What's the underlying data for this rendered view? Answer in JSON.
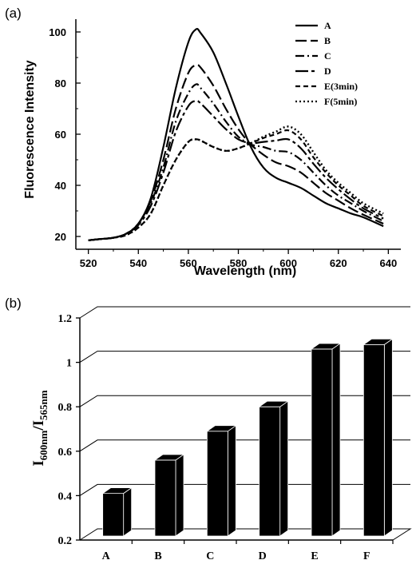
{
  "chart_data": [
    {
      "panel_label": "(a)",
      "type": "line",
      "title": "",
      "xlabel": "Wavelength (nm)",
      "ylabel": "Fluorescence Intensity",
      "xlim": [
        515,
        645
      ],
      "ylim": [
        15,
        105
      ],
      "xticks": [
        "520",
        "540",
        "560",
        "580",
        "600",
        "620",
        "640"
      ],
      "yticks": [
        "20",
        "40",
        "60",
        "80",
        "100"
      ],
      "x": [
        520,
        525,
        530,
        535,
        540,
        545,
        550,
        555,
        560,
        563,
        565,
        570,
        575,
        580,
        585,
        590,
        595,
        600,
        605,
        610,
        615,
        620,
        625,
        630,
        638
      ],
      "series": [
        {
          "name": "A",
          "values": [
            18.5,
            19,
            19.5,
            21,
            25,
            35,
            55,
            78,
            96,
            101,
            99.5,
            92,
            80,
            67,
            55,
            47,
            43,
            41,
            39,
            36,
            33,
            31,
            29,
            27.5,
            24
          ]
        },
        {
          "name": "B",
          "values": [
            18.5,
            19,
            19.5,
            21,
            25,
            34,
            50,
            70,
            84,
            87,
            86,
            79,
            70,
            62,
            56,
            52,
            49,
            47.5,
            45,
            41,
            37,
            34,
            31,
            28.5,
            25
          ]
        },
        {
          "name": "C",
          "values": [
            18.5,
            19,
            19.5,
            21,
            25,
            33,
            47,
            65,
            76,
            79.5,
            78,
            72,
            65,
            59,
            56,
            55,
            53.5,
            53,
            50,
            45,
            40,
            36,
            33,
            30,
            26
          ]
        },
        {
          "name": "D",
          "values": [
            18.5,
            19,
            19.5,
            21,
            24.5,
            32,
            45,
            61,
            71,
            73,
            72,
            67,
            62,
            58,
            56.5,
            57,
            57.5,
            58,
            54.5,
            48.5,
            43,
            38.5,
            34.5,
            31,
            27
          ]
        },
        {
          "name": "E(3min)",
          "values": [
            18.5,
            19,
            19.5,
            20.5,
            23.5,
            29,
            40,
            50,
            57,
            58,
            57.5,
            55,
            53.5,
            54.5,
            56.5,
            58.5,
            60,
            61.5,
            58,
            51,
            45,
            40,
            36,
            32,
            28
          ]
        },
        {
          "name": "F(5min)",
          "values": [
            18.5,
            19,
            19.5,
            20.5,
            23.5,
            29,
            40,
            50,
            57,
            58,
            57.5,
            55,
            53.5,
            54.5,
            56.5,
            59,
            61,
            63,
            60,
            53,
            46,
            41,
            37,
            33,
            29
          ]
        }
      ],
      "legend_position": "top-right"
    },
    {
      "panel_label": "(b)",
      "type": "bar",
      "title": "",
      "xlabel": "",
      "ylabel_main": "I",
      "ylabel_sub1": "600nm",
      "ylabel_slash": "/I",
      "ylabel_sub2": "565nm",
      "ylim": [
        0.2,
        1.2
      ],
      "yticks": [
        "0.2",
        "0.4",
        "0.6",
        "0.8",
        "1",
        "1.2"
      ],
      "categories": [
        "A",
        "B",
        "C",
        "D",
        "E",
        "F"
      ],
      "values": [
        0.41,
        0.56,
        0.69,
        0.8,
        1.06,
        1.08
      ],
      "bar_color": "#000000"
    }
  ]
}
